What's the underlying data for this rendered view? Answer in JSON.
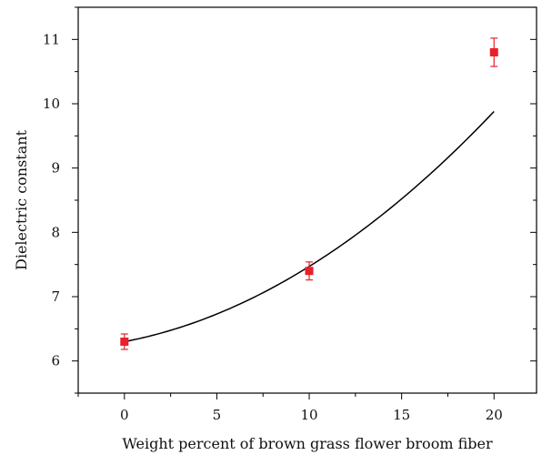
{
  "chart_data": {
    "type": "scatter",
    "title": "",
    "xlabel": "Weight percent of brown grass flower broom fiber",
    "ylabel": "Dielectric constant",
    "xlim": [
      -2.5,
      22.3
    ],
    "ylim": [
      5.5,
      11.5
    ],
    "x_ticks": [
      0,
      5,
      10,
      15,
      20
    ],
    "y_ticks": [
      6,
      7,
      8,
      9,
      10,
      11
    ],
    "grid": false,
    "legend": "none",
    "series": [
      {
        "marker": "square",
        "color": "#e8202a",
        "points": [
          {
            "x": 0,
            "y": 6.3,
            "err": 0.12
          },
          {
            "x": 10,
            "y": 7.4,
            "err": 0.14
          },
          {
            "x": 20,
            "y": 10.8,
            "err": 0.22
          }
        ]
      }
    ],
    "fit_curve": {
      "type": "polynomial",
      "color": "#000000",
      "x_range": [
        0,
        20
      ],
      "coefficients": [
        6.3,
        0.055,
        0.0062
      ]
    }
  }
}
